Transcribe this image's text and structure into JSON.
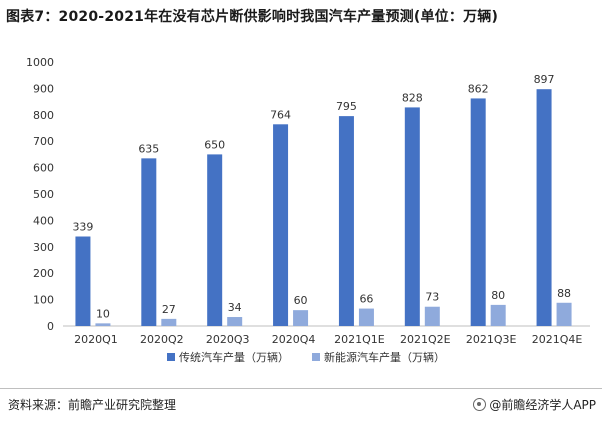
{
  "chart_title": "图表7：2020-2021年在没有芯片断供影响时我国汽车产量预测(单位：万辆)",
  "source_text": "资料来源：前瞻产业研究院整理",
  "brand_text": "@前瞻经济学人APP",
  "colors": {
    "series1": "#4472C4",
    "series2": "#8FAADC",
    "axis": "#bfbfbf",
    "grid": "#e6e6e6"
  },
  "chart_data": {
    "type": "bar",
    "title": "图表7：2020-2021年在没有芯片断供影响时我国汽车产量预测(单位：万辆)",
    "categories": [
      "2020Q1",
      "2020Q2",
      "2020Q3",
      "2020Q4",
      "2021Q1E",
      "2021Q2E",
      "2021Q3E",
      "2021Q4E"
    ],
    "series": [
      {
        "name": "传统汽车产量（万辆）",
        "values": [
          339,
          635,
          650,
          764,
          795,
          828,
          862,
          897
        ]
      },
      {
        "name": "新能源汽车产量（万辆）",
        "values": [
          10,
          27,
          34,
          60,
          66,
          73,
          80,
          88
        ]
      }
    ],
    "ylim": [
      0,
      1000
    ],
    "yticks": [
      0,
      100,
      200,
      300,
      400,
      500,
      600,
      700,
      800,
      900,
      1000
    ],
    "xlabel": "",
    "ylabel": "",
    "legend_position": "bottom"
  }
}
